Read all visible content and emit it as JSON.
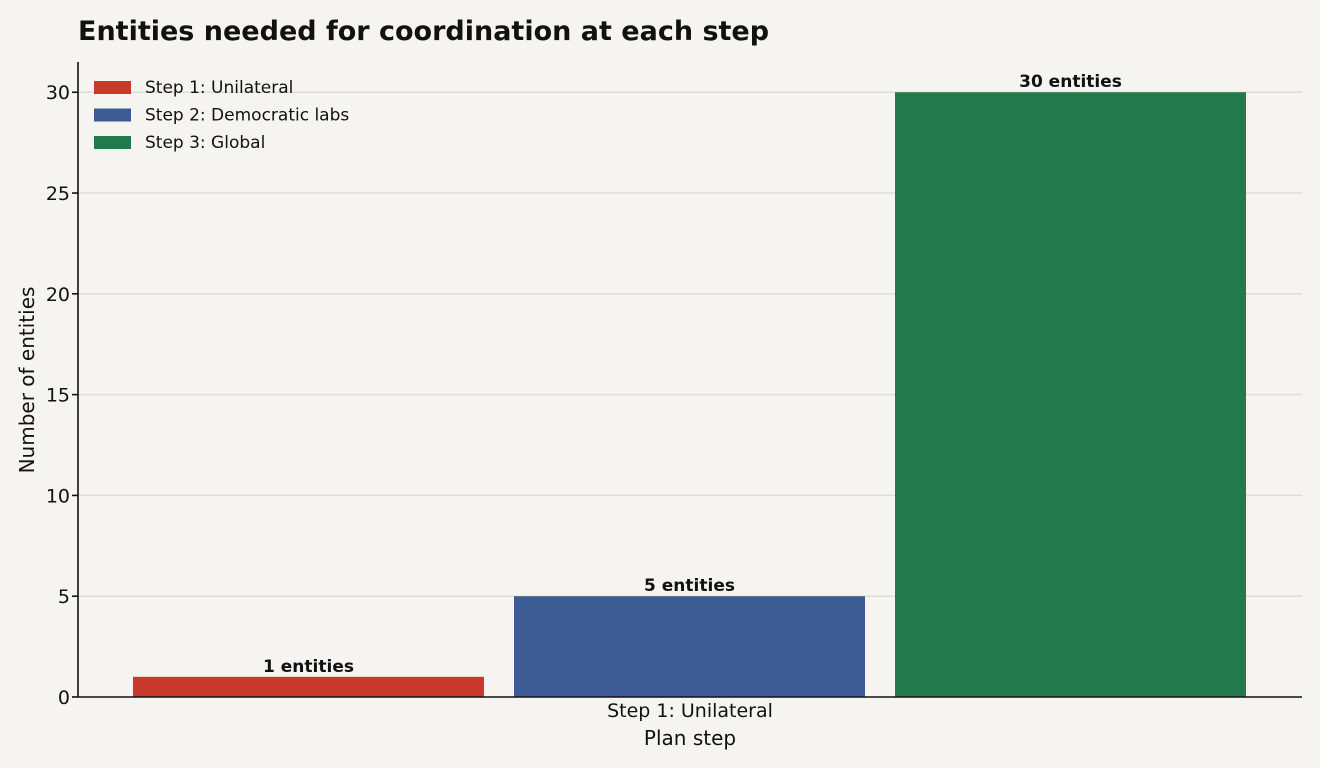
{
  "chart_data": {
    "type": "bar",
    "title": "Entities needed for coordination at each step",
    "xlabel": "Plan step",
    "ylabel": "Number of entities",
    "x_tick_labels": [
      "Step 1: Unilateral"
    ],
    "ylim": [
      0,
      31.5
    ],
    "y_ticks": [
      0,
      5,
      10,
      15,
      20,
      25,
      30
    ],
    "grid": true,
    "legend_position": "top-left",
    "series": [
      {
        "name": "Step 1: Unilateral",
        "value": 1,
        "label": "1 entities",
        "color": "#c8392b"
      },
      {
        "name": "Step 2: Democratic labs",
        "value": 5,
        "label": "5 entities",
        "color": "#3c5a94"
      },
      {
        "name": "Step 3: Global",
        "value": 30,
        "label": "30 entities",
        "color": "#227a4c"
      }
    ]
  }
}
